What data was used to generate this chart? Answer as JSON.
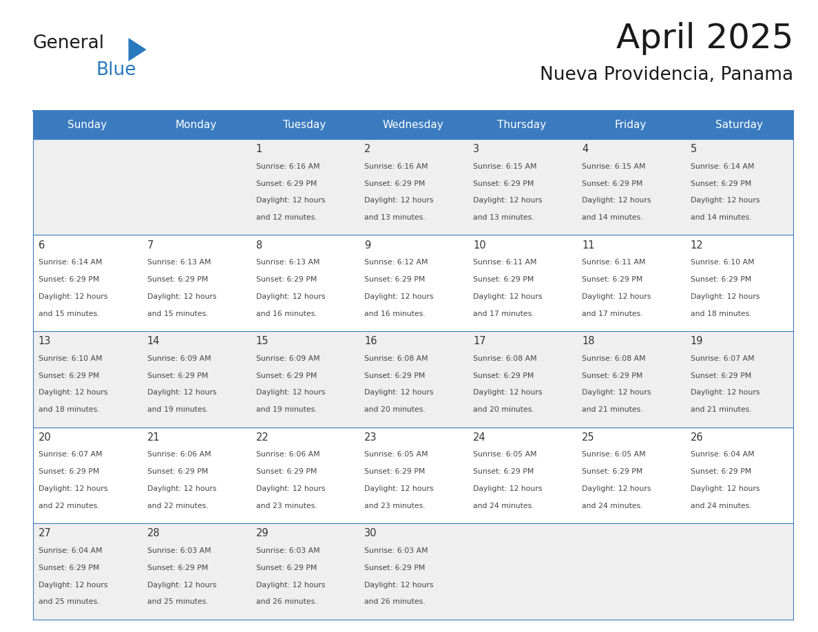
{
  "title": "April 2025",
  "subtitle": "Nueva Providencia, Panama",
  "header_bg_color": "#3a7bbf",
  "header_text_color": "#ffffff",
  "text_color": "#444444",
  "day_number_color": "#333333",
  "border_color": "#3a7bbf",
  "days_of_week": [
    "Sunday",
    "Monday",
    "Tuesday",
    "Wednesday",
    "Thursday",
    "Friday",
    "Saturday"
  ],
  "logo_black": "#1a1a1a",
  "logo_blue": "#2878be",
  "calendar_data": [
    [
      {
        "day": "",
        "sunrise": "",
        "sunset": "",
        "daylight_min": ""
      },
      {
        "day": "",
        "sunrise": "",
        "sunset": "",
        "daylight_min": ""
      },
      {
        "day": "1",
        "sunrise": "6:16 AM",
        "sunset": "6:29 PM",
        "daylight_min": "12 minutes."
      },
      {
        "day": "2",
        "sunrise": "6:16 AM",
        "sunset": "6:29 PM",
        "daylight_min": "13 minutes."
      },
      {
        "day": "3",
        "sunrise": "6:15 AM",
        "sunset": "6:29 PM",
        "daylight_min": "13 minutes."
      },
      {
        "day": "4",
        "sunrise": "6:15 AM",
        "sunset": "6:29 PM",
        "daylight_min": "14 minutes."
      },
      {
        "day": "5",
        "sunrise": "6:14 AM",
        "sunset": "6:29 PM",
        "daylight_min": "14 minutes."
      }
    ],
    [
      {
        "day": "6",
        "sunrise": "6:14 AM",
        "sunset": "6:29 PM",
        "daylight_min": "15 minutes."
      },
      {
        "day": "7",
        "sunrise": "6:13 AM",
        "sunset": "6:29 PM",
        "daylight_min": "15 minutes."
      },
      {
        "day": "8",
        "sunrise": "6:13 AM",
        "sunset": "6:29 PM",
        "daylight_min": "16 minutes."
      },
      {
        "day": "9",
        "sunrise": "6:12 AM",
        "sunset": "6:29 PM",
        "daylight_min": "16 minutes."
      },
      {
        "day": "10",
        "sunrise": "6:11 AM",
        "sunset": "6:29 PM",
        "daylight_min": "17 minutes."
      },
      {
        "day": "11",
        "sunrise": "6:11 AM",
        "sunset": "6:29 PM",
        "daylight_min": "17 minutes."
      },
      {
        "day": "12",
        "sunrise": "6:10 AM",
        "sunset": "6:29 PM",
        "daylight_min": "18 minutes."
      }
    ],
    [
      {
        "day": "13",
        "sunrise": "6:10 AM",
        "sunset": "6:29 PM",
        "daylight_min": "18 minutes."
      },
      {
        "day": "14",
        "sunrise": "6:09 AM",
        "sunset": "6:29 PM",
        "daylight_min": "19 minutes."
      },
      {
        "day": "15",
        "sunrise": "6:09 AM",
        "sunset": "6:29 PM",
        "daylight_min": "19 minutes."
      },
      {
        "day": "16",
        "sunrise": "6:08 AM",
        "sunset": "6:29 PM",
        "daylight_min": "20 minutes."
      },
      {
        "day": "17",
        "sunrise": "6:08 AM",
        "sunset": "6:29 PM",
        "daylight_min": "20 minutes."
      },
      {
        "day": "18",
        "sunrise": "6:08 AM",
        "sunset": "6:29 PM",
        "daylight_min": "21 minutes."
      },
      {
        "day": "19",
        "sunrise": "6:07 AM",
        "sunset": "6:29 PM",
        "daylight_min": "21 minutes."
      }
    ],
    [
      {
        "day": "20",
        "sunrise": "6:07 AM",
        "sunset": "6:29 PM",
        "daylight_min": "22 minutes."
      },
      {
        "day": "21",
        "sunrise": "6:06 AM",
        "sunset": "6:29 PM",
        "daylight_min": "22 minutes."
      },
      {
        "day": "22",
        "sunrise": "6:06 AM",
        "sunset": "6:29 PM",
        "daylight_min": "23 minutes."
      },
      {
        "day": "23",
        "sunrise": "6:05 AM",
        "sunset": "6:29 PM",
        "daylight_min": "23 minutes."
      },
      {
        "day": "24",
        "sunrise": "6:05 AM",
        "sunset": "6:29 PM",
        "daylight_min": "24 minutes."
      },
      {
        "day": "25",
        "sunrise": "6:05 AM",
        "sunset": "6:29 PM",
        "daylight_min": "24 minutes."
      },
      {
        "day": "26",
        "sunrise": "6:04 AM",
        "sunset": "6:29 PM",
        "daylight_min": "24 minutes."
      }
    ],
    [
      {
        "day": "27",
        "sunrise": "6:04 AM",
        "sunset": "6:29 PM",
        "daylight_min": "25 minutes."
      },
      {
        "day": "28",
        "sunrise": "6:03 AM",
        "sunset": "6:29 PM",
        "daylight_min": "25 minutes."
      },
      {
        "day": "29",
        "sunrise": "6:03 AM",
        "sunset": "6:29 PM",
        "daylight_min": "26 minutes."
      },
      {
        "day": "30",
        "sunrise": "6:03 AM",
        "sunset": "6:29 PM",
        "daylight_min": "26 minutes."
      },
      {
        "day": "",
        "sunrise": "",
        "sunset": "",
        "daylight_min": ""
      },
      {
        "day": "",
        "sunrise": "",
        "sunset": "",
        "daylight_min": ""
      },
      {
        "day": "",
        "sunrise": "",
        "sunset": "",
        "daylight_min": ""
      }
    ]
  ]
}
